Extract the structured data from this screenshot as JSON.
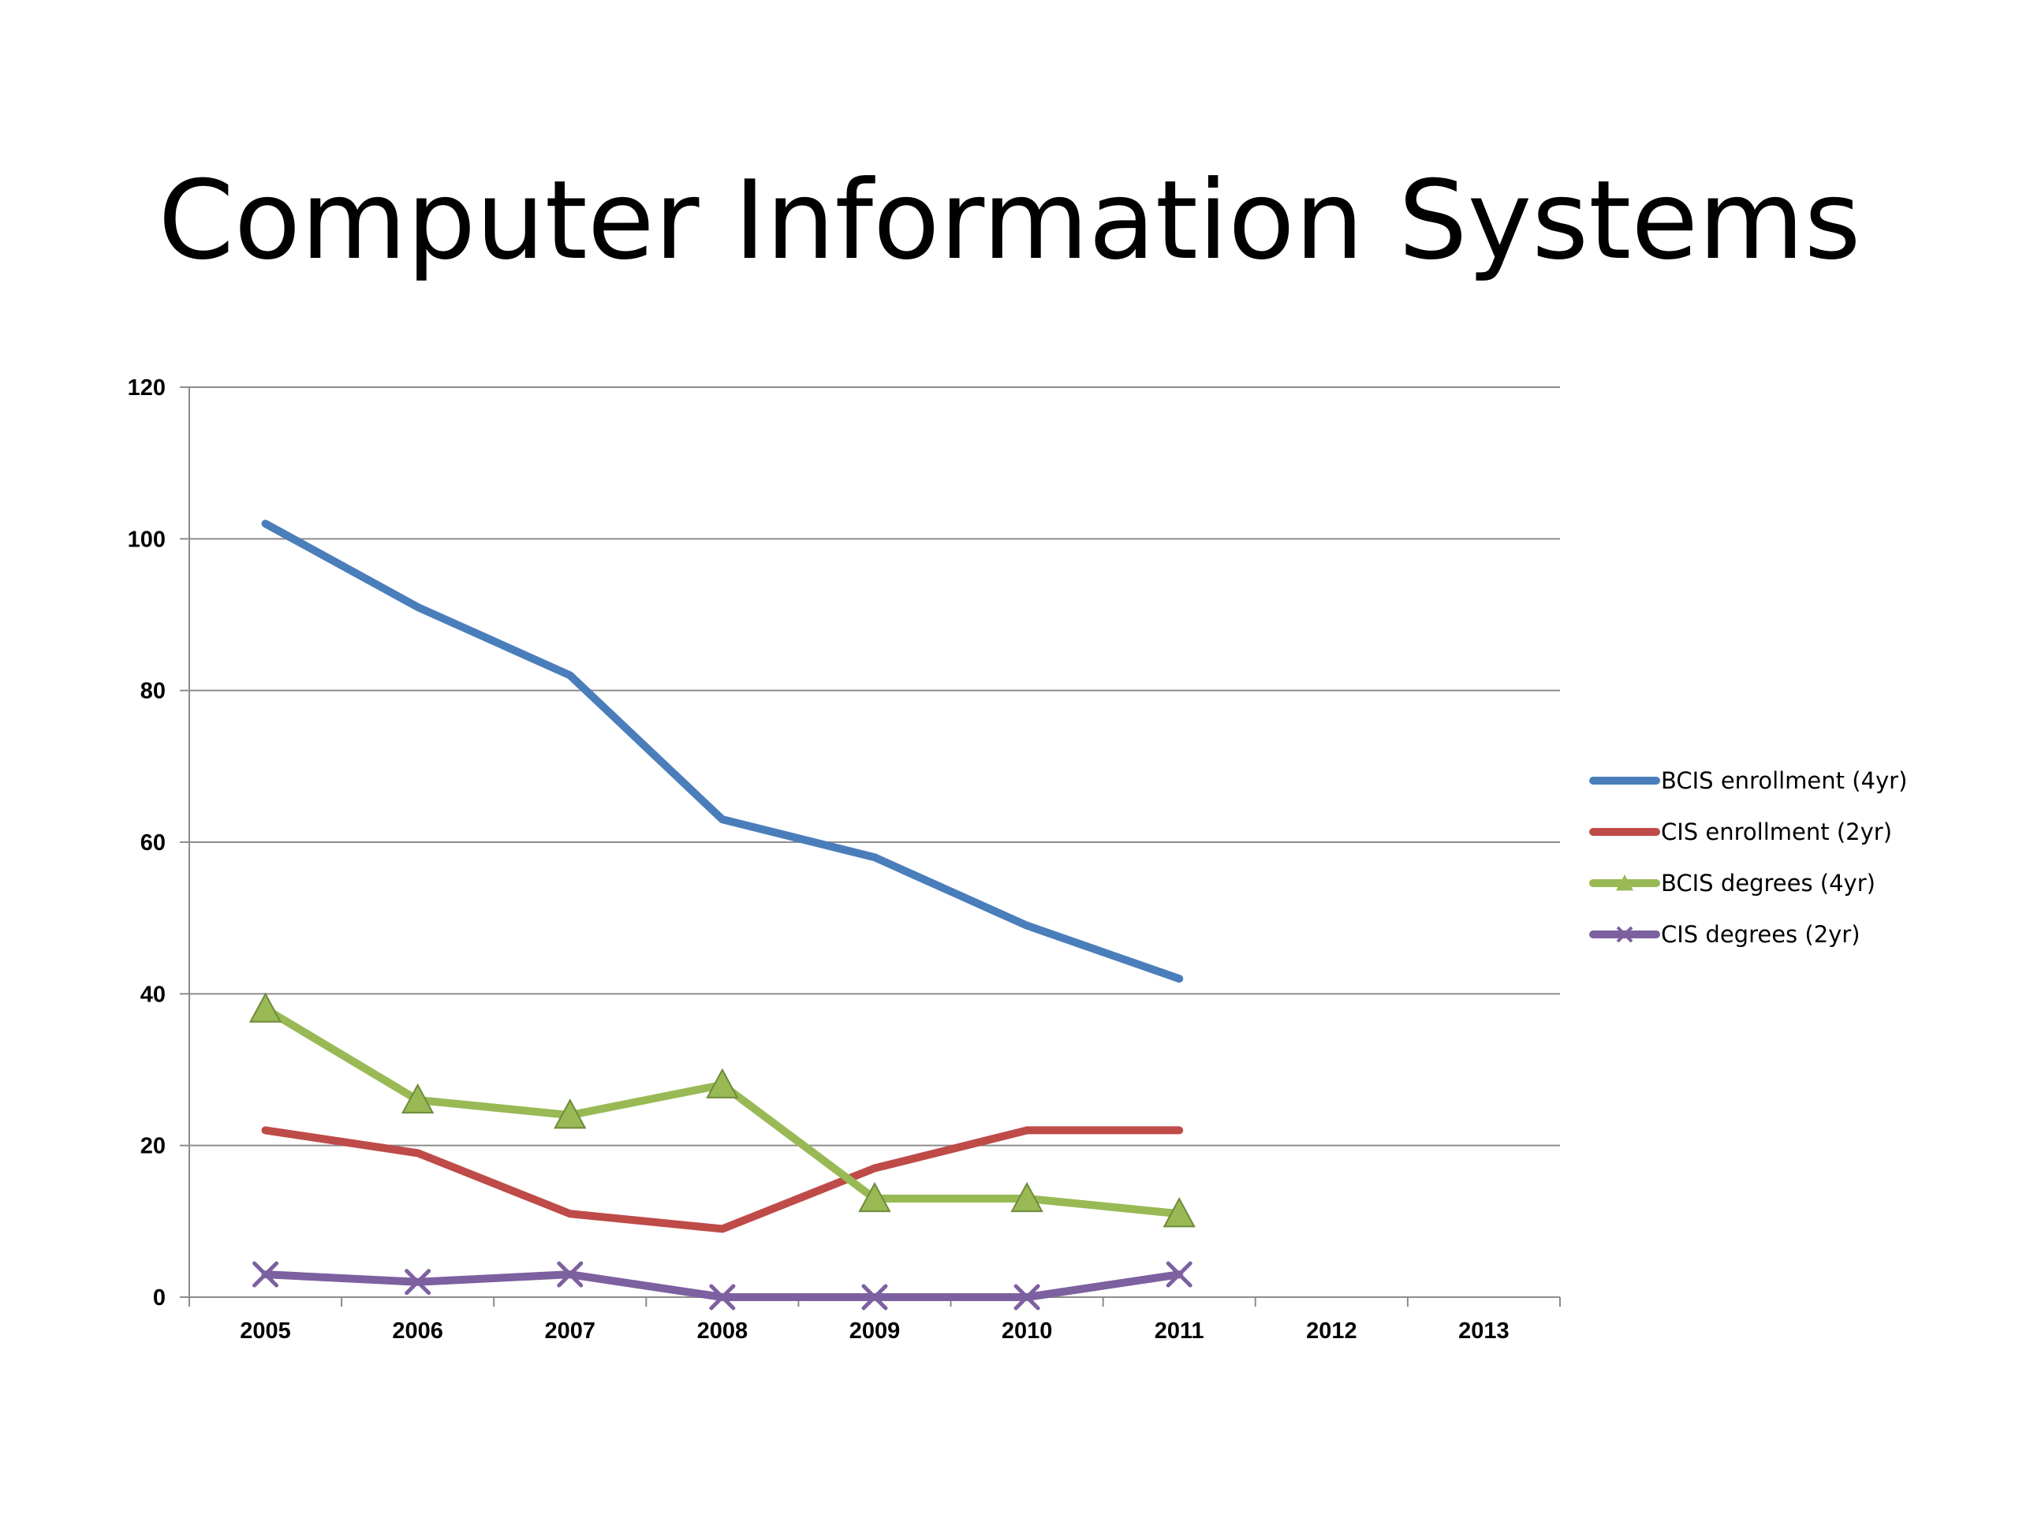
{
  "slide": {
    "title": "Computer Information Systems"
  },
  "chart_data": {
    "type": "line",
    "title": "",
    "xlabel": "",
    "ylabel": "",
    "categories": [
      "2005",
      "2006",
      "2007",
      "2008",
      "2009",
      "2010",
      "2011",
      "2012",
      "2013"
    ],
    "ylim": [
      0,
      120
    ],
    "yticks": [
      0,
      20,
      40,
      60,
      80,
      100,
      120
    ],
    "grid": true,
    "legend_position": "right",
    "series": [
      {
        "name": "BCIS enrollment (4yr)",
        "color": "#4a7ebb",
        "marker": "none",
        "values": [
          102,
          91,
          82,
          63,
          58,
          49,
          42,
          null,
          null
        ]
      },
      {
        "name": "CIS enrollment (2yr)",
        "color": "#be4b48",
        "marker": "none",
        "values": [
          22,
          19,
          11,
          9,
          17,
          22,
          22,
          null,
          null
        ]
      },
      {
        "name": "BCIS degrees (4yr)",
        "color": "#98b954",
        "marker": "triangle",
        "values": [
          38,
          26,
          24,
          28,
          13,
          13,
          11,
          null,
          null
        ]
      },
      {
        "name": "CIS degrees (2yr)",
        "color": "#7d60a0",
        "marker": "x",
        "values": [
          3,
          2,
          3,
          0,
          0,
          0,
          3,
          null,
          null
        ]
      }
    ]
  }
}
